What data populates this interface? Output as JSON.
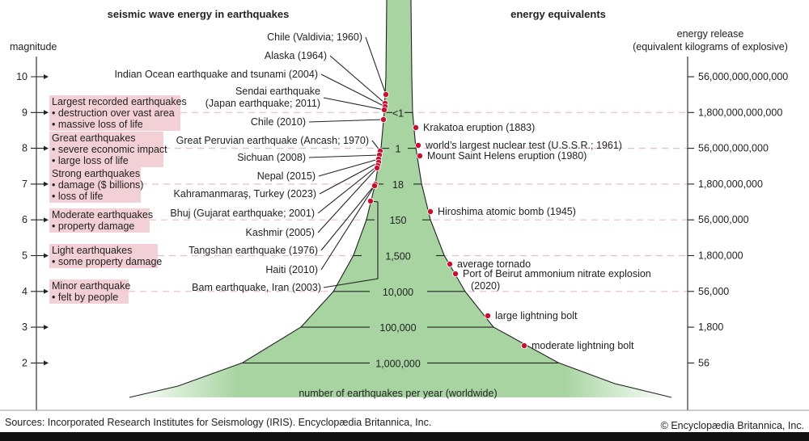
{
  "titles": {
    "left": "seismic wave energy in earthquakes",
    "right": "energy equivalents",
    "magnitude_axis": "magnitude",
    "energy_axis_line1": "energy release",
    "energy_axis_line2": "(equivalent kilograms of explosive)",
    "funnel_caption": "number of earthquakes per year (worldwide)"
  },
  "magnitudes": [
    "10",
    "9",
    "8",
    "7",
    "6",
    "5",
    "4",
    "3",
    "2"
  ],
  "energy_values": [
    "56,000,000,000,000",
    "1,800,000,000,000",
    "56,000,000,000",
    "1,800,000,000",
    "56,000,000",
    "1,800,000",
    "56,000",
    "1,800",
    "56"
  ],
  "yearly_counts": [
    "<1",
    "1",
    "18",
    "150",
    "1,500",
    "10,000",
    "100,000",
    "1,000,000"
  ],
  "categories": [
    {
      "magnitude": 9,
      "lines": [
        "Largest recorded earthquakes",
        "• destruction over vast area",
        "• massive loss of life"
      ]
    },
    {
      "magnitude": 8,
      "lines": [
        "Great earthquakes",
        "• severe economic impact",
        "• large loss of life"
      ]
    },
    {
      "magnitude": 7,
      "lines": [
        "Strong earthquakes",
        "• damage ($ billions)",
        "• loss of life"
      ]
    },
    {
      "magnitude": 6,
      "lines": [
        "Moderate earthquakes",
        "• property damage"
      ]
    },
    {
      "magnitude": 5,
      "lines": [
        "Light earthquakes",
        "• some property damage"
      ]
    },
    {
      "magnitude": 4,
      "lines": [
        "Minor earthquake",
        "• felt by people"
      ]
    }
  ],
  "earthquakes": [
    {
      "lines": [
        "Chile (Valdivia; 1960)"
      ]
    },
    {
      "lines": [
        "Alaska (1964)"
      ]
    },
    {
      "lines": [
        "Indian Ocean earthquake and tsunami (2004)"
      ]
    },
    {
      "lines": [
        "Sendai earthquake",
        "(Japan earthquake; 2011)"
      ]
    },
    {
      "lines": [
        "Chile (2010)"
      ]
    },
    {
      "lines": [
        "Great Peruvian earthquake (Ancash; 1970)"
      ]
    },
    {
      "lines": [
        "Sichuan (2008)"
      ]
    },
    {
      "lines": [
        "Nepal (2015)"
      ]
    },
    {
      "lines": [
        "Kahramanmaraş, Turkey (2023)"
      ]
    },
    {
      "lines": [
        "Bhuj (Gujarat earthquake; 2001)"
      ]
    },
    {
      "lines": [
        "Kashmir (2005)"
      ]
    },
    {
      "lines": [
        "Tangshan earthquake (1976)"
      ]
    },
    {
      "lines": [
        "Haiti (2010)"
      ]
    },
    {
      "lines": [
        "Bam earthquake, Iran (2003)"
      ]
    }
  ],
  "equivalents": [
    {
      "lines": [
        "Krakatoa eruption (1883)"
      ]
    },
    {
      "lines": [
        "world’s largest nuclear test (U.S.S.R.; 1961)"
      ]
    },
    {
      "lines": [
        "Mount Saint Helens eruption (1980)"
      ]
    },
    {
      "lines": [
        "Hiroshima atomic bomb (1945)"
      ]
    },
    {
      "lines": [
        "average tornado"
      ]
    },
    {
      "lines": [
        "Port of Beirut ammonium nitrate explosion",
        "(2020)"
      ]
    },
    {
      "lines": [
        "large lightning bolt"
      ]
    },
    {
      "lines": [
        "moderate lightning bolt"
      ]
    }
  ],
  "footer": {
    "sources": "Sources: Incorporated Research Institutes for Seismology (IRIS). Encyclopædia Britannica, Inc.",
    "copyright": "© Encyclopædia Britannica, Inc."
  },
  "colors": {
    "funnel": "#9fd09a",
    "category_box": "#f3d0d6",
    "event_dot": "#c8102e"
  }
}
